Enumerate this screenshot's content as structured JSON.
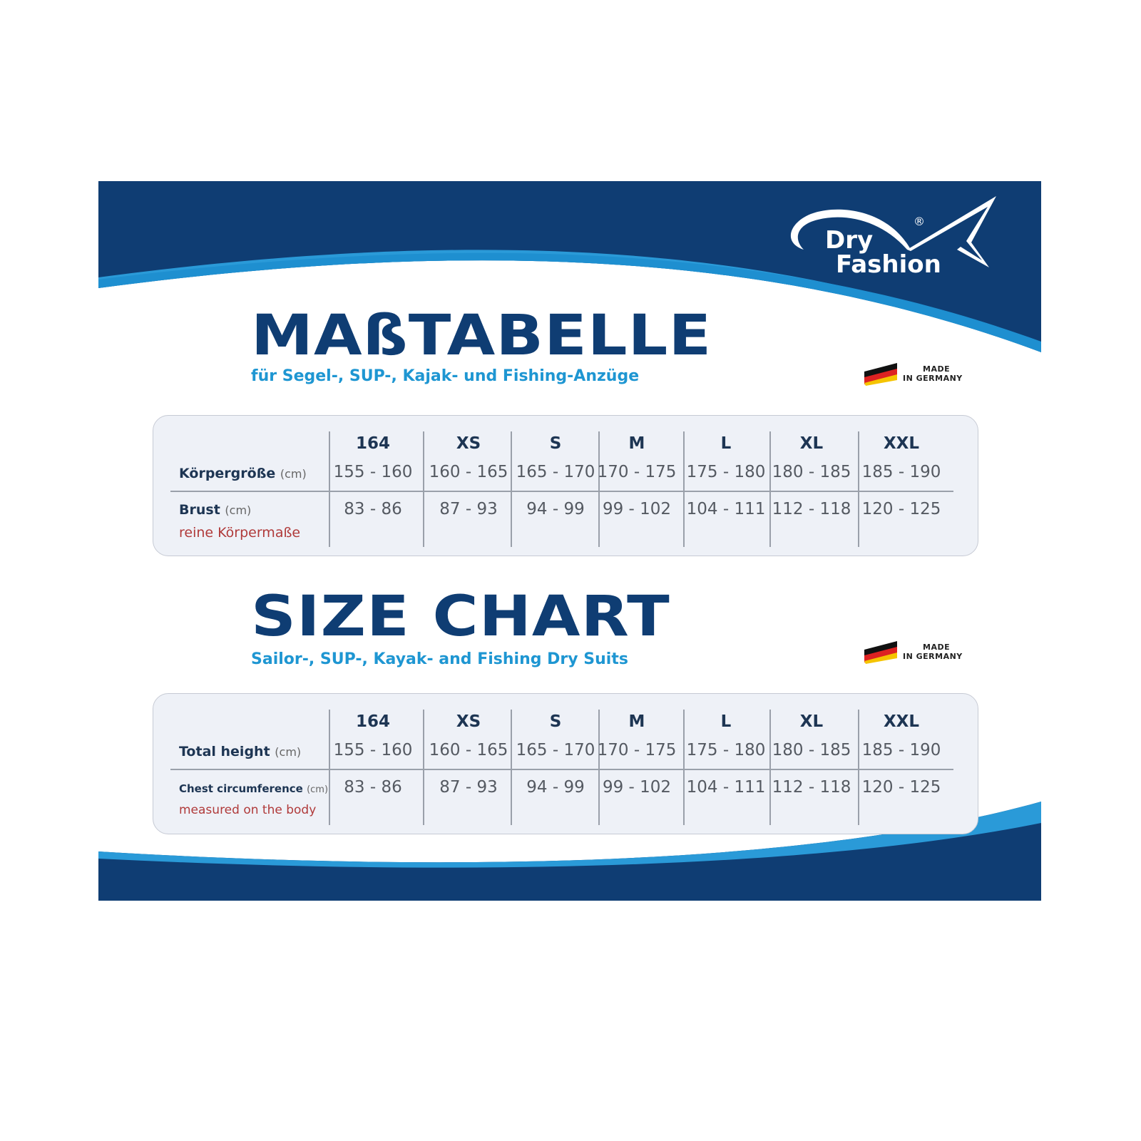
{
  "brand": {
    "name_line1": "Dry",
    "name_line2": "Fashion",
    "registered": "®"
  },
  "colors": {
    "navy": "#0f3d73",
    "light_blue": "#1e96d2",
    "note_red": "#b03a3a"
  },
  "made_in": {
    "line1": "MADE",
    "line2": "IN GERMANY",
    "icon": "german-flag-icon"
  },
  "sections": [
    {
      "title": "MAßTABELLE",
      "subtitle": "für Segel-, SUP-, Kajak- und Fishing-Anzüge",
      "sizes": [
        "164",
        "XS",
        "S",
        "M",
        "L",
        "XL",
        "XXL"
      ],
      "row1": {
        "label": "Körpergröße",
        "unit": "(cm)",
        "values": [
          "155 - 160",
          "160 - 165",
          "165 - 170",
          "170 - 175",
          "175 - 180",
          "180 - 185",
          "185 - 190"
        ]
      },
      "row2": {
        "label": "Brust",
        "unit": "(cm)",
        "note": "reine Körpermaße",
        "values": [
          "83 - 86",
          "87 - 93",
          "94 - 99",
          "99 - 102",
          "104 - 111",
          "112 - 118",
          "120 - 125"
        ]
      }
    },
    {
      "title": "SIZE CHART",
      "subtitle": "Sailor-, SUP-, Kayak- and Fishing Dry Suits",
      "sizes": [
        "164",
        "XS",
        "S",
        "M",
        "L",
        "XL",
        "XXL"
      ],
      "row1": {
        "label": "Total height",
        "unit": "(cm)",
        "values": [
          "155 - 160",
          "160 - 165",
          "165 - 170",
          "170 - 175",
          "175 - 180",
          "180 - 185",
          "185 - 190"
        ]
      },
      "row2": {
        "label": "Chest circumference",
        "unit": "(cm)",
        "note": "measured on the body",
        "values": [
          "83 - 86",
          "87 - 93",
          "94 - 99",
          "99 - 102",
          "104 - 111",
          "112 - 118",
          "120 - 125"
        ]
      }
    }
  ]
}
